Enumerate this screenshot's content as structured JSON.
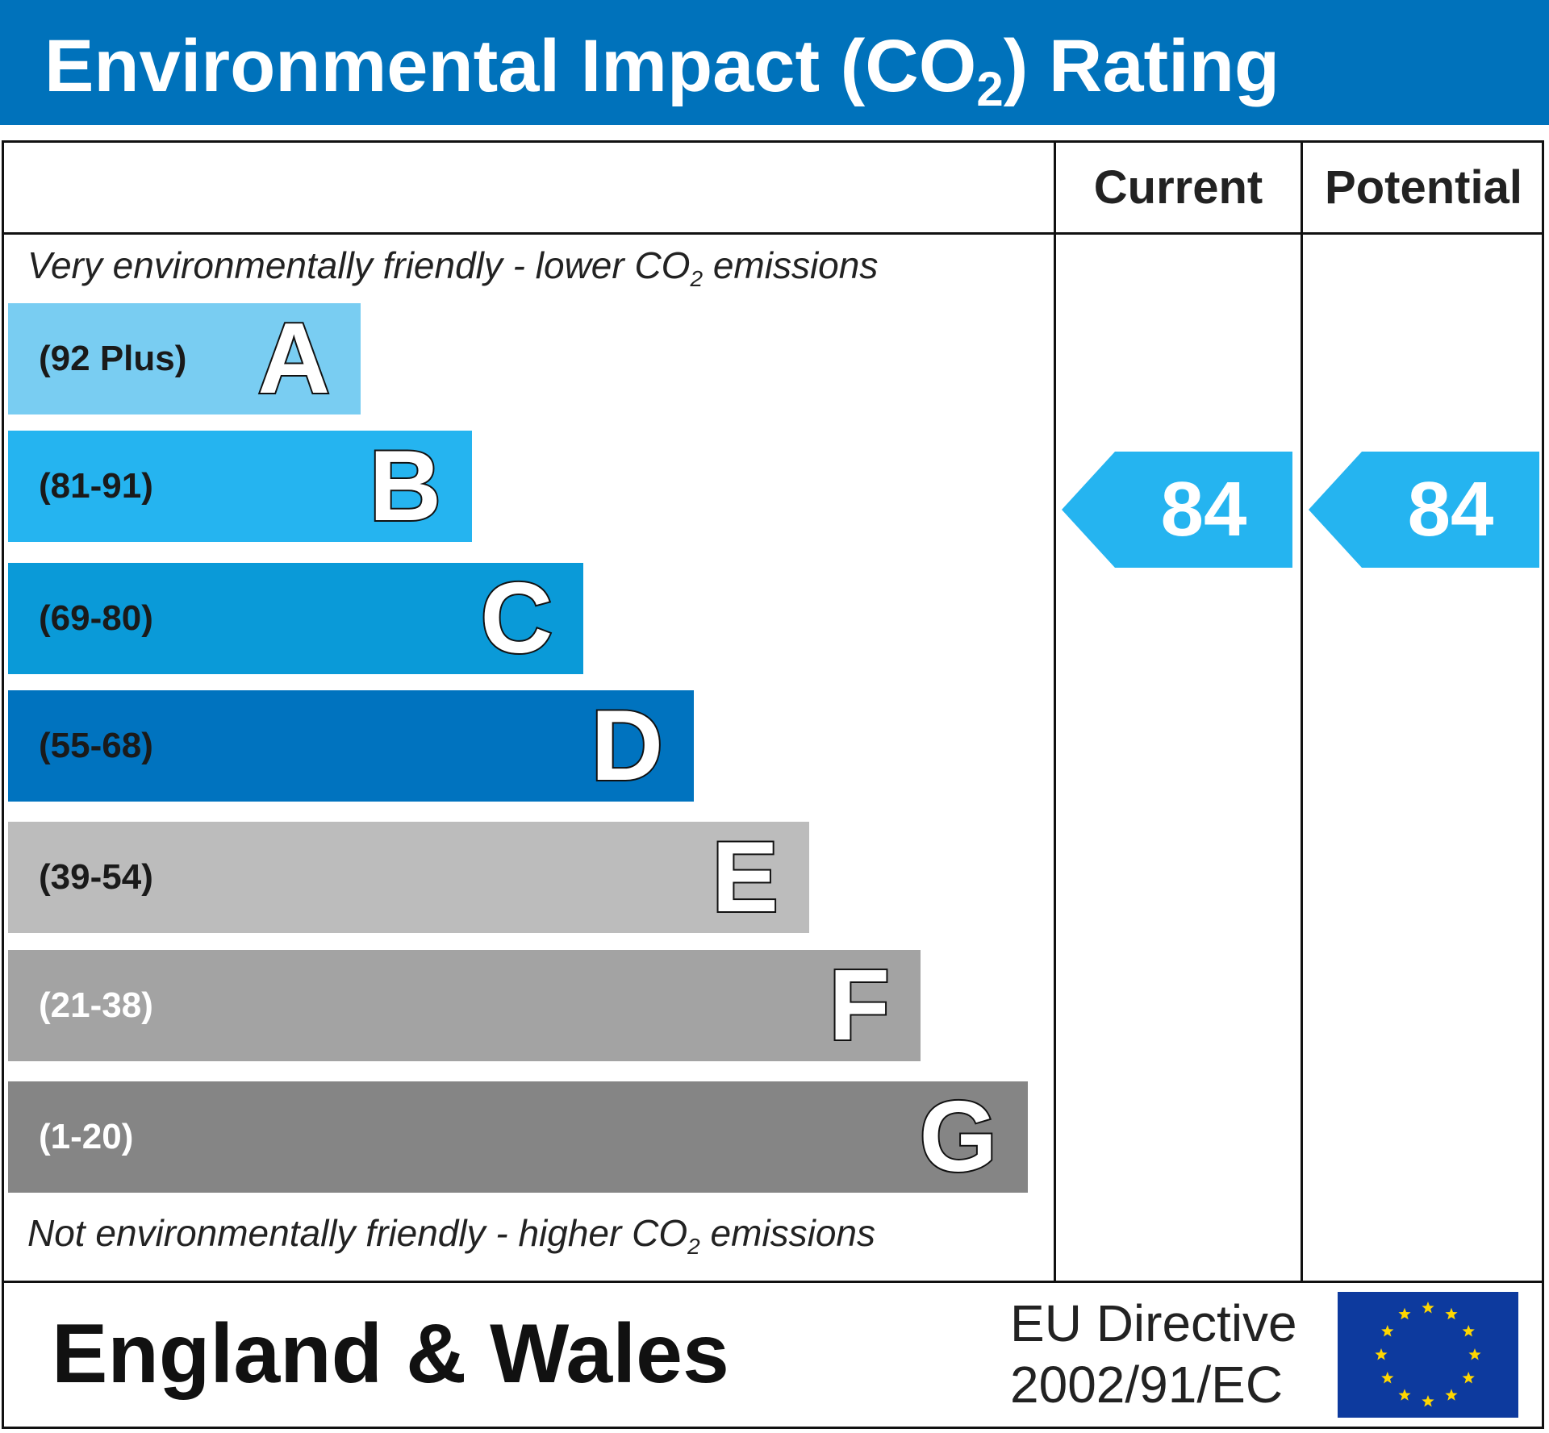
{
  "header": {
    "title_prefix": "Environmental Impact (CO",
    "title_sub": "2",
    "title_suffix": ") Rating"
  },
  "columns": {
    "current": "Current",
    "potential": "Potential"
  },
  "notes": {
    "top_prefix": "Very environmentally friendly - lower CO",
    "top_sub": "2",
    "top_suffix": " emissions",
    "bottom_prefix": "Not environmentally friendly - higher CO",
    "bottom_sub": "2",
    "bottom_suffix": " emissions"
  },
  "chart_data": {
    "type": "bar",
    "categories": [
      "A",
      "B",
      "C",
      "D",
      "E",
      "F",
      "G"
    ],
    "bands": [
      {
        "letter": "A",
        "range": "(92 Plus)",
        "color": "#79cdf2",
        "text_color": "#1a1a1a"
      },
      {
        "letter": "B",
        "range": "(81-91)",
        "color": "#25b4f0",
        "text_color": "#1a1a1a"
      },
      {
        "letter": "C",
        "range": "(69-80)",
        "color": "#0a9ad8",
        "text_color": "#1a1a1a"
      },
      {
        "letter": "D",
        "range": "(55-68)",
        "color": "#0073bf",
        "text_color": "#1a1a1a"
      },
      {
        "letter": "E",
        "range": "(39-54)",
        "color": "#bcbcbc",
        "text_color": "#1a1a1a"
      },
      {
        "letter": "F",
        "range": "(21-38)",
        "color": "#a3a3a3",
        "text_color": "#ffffff"
      },
      {
        "letter": "G",
        "range": "(1-20)",
        "color": "#858585",
        "text_color": "#ffffff"
      }
    ],
    "series": [
      {
        "name": "Current",
        "value": 84,
        "band": "B"
      },
      {
        "name": "Potential",
        "value": 84,
        "band": "B"
      }
    ]
  },
  "footer": {
    "region": "England & Wales",
    "eu_line1": "EU Directive",
    "eu_line2": "2002/91/EC",
    "eu_flag_colors": {
      "background": "#0d3a9e",
      "stars": "#ffd700"
    }
  }
}
